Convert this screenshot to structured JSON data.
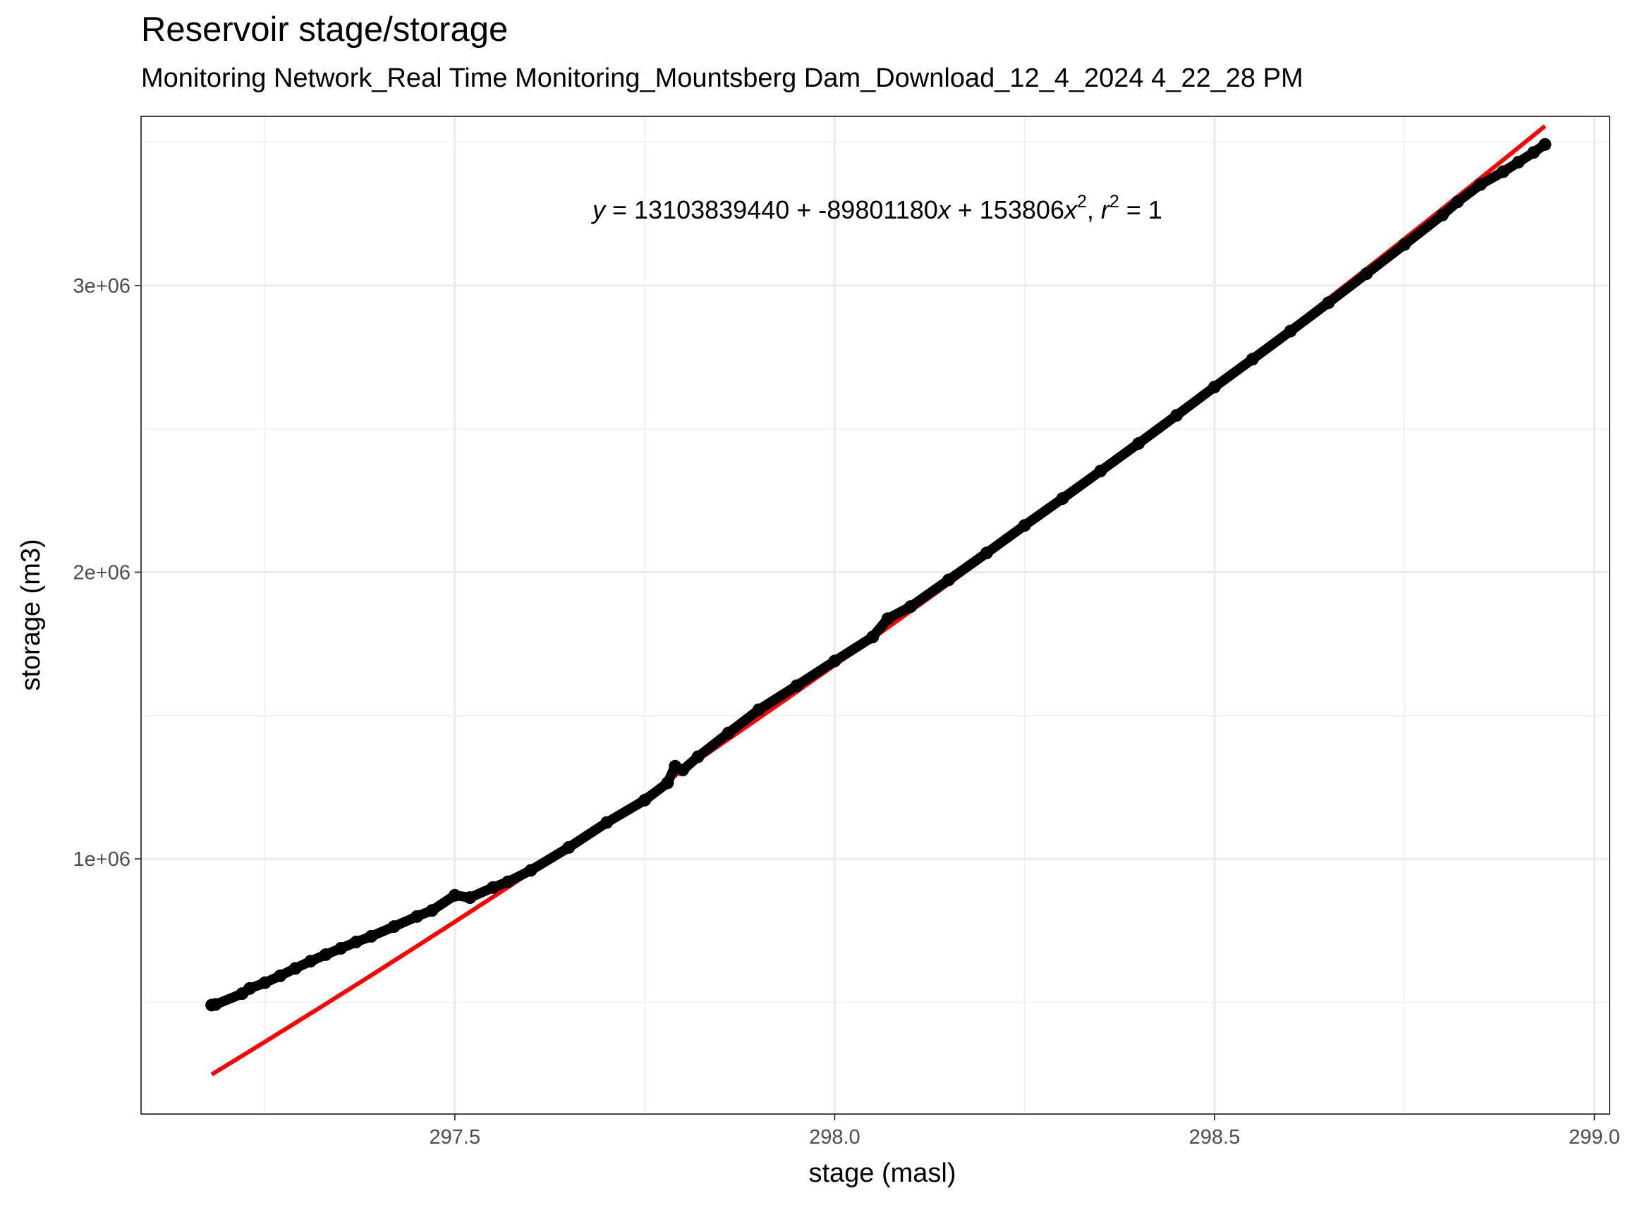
{
  "chart_data": {
    "type": "scatter",
    "title": "Reservoir stage/storage",
    "subtitle": "Monitoring Network_Real Time Monitoring_Mountsberg  Dam_Download_12_4_2024 4_22_28 PM",
    "xlabel": "stage (masl)",
    "ylabel": "storage (m3)",
    "xlim": [
      297.087,
      299.02
    ],
    "ylim": [
      110000,
      3590000
    ],
    "x_ticks": [
      297.5,
      298.0,
      298.5,
      299.0
    ],
    "x_tick_labels": [
      "297.5",
      "298.0",
      "298.5",
      "299.0"
    ],
    "y_ticks": [
      1000000,
      2000000,
      3000000
    ],
    "y_tick_labels": [
      "1e+06",
      "2e+06",
      "3e+06"
    ],
    "grid": true,
    "legend": "none",
    "annotation": {
      "equation_prefix": "y",
      "equation_body": " = 13103839440 + -89801180",
      "x_var": "x",
      "term_sep": " + 153806",
      "exponent": "2",
      "r_label_sep": ",  ",
      "r_var": "r",
      "r_value": " = 1"
    },
    "series": [
      {
        "kind": "points",
        "color": "#000000",
        "x": [
          297.18,
          297.185,
          297.22,
          297.23,
          297.25,
          297.27,
          297.29,
          297.31,
          297.33,
          297.35,
          297.37,
          297.39,
          297.42,
          297.45,
          297.47,
          297.5,
          297.52,
          297.55,
          297.57,
          297.6,
          297.65,
          297.7,
          297.75,
          297.78,
          297.79,
          297.8,
          297.82,
          297.86,
          297.9,
          297.95,
          298.0,
          298.05,
          298.07,
          298.1,
          298.15,
          298.2,
          298.25,
          298.3,
          298.35,
          298.4,
          298.45,
          298.5,
          298.55,
          298.6,
          298.65,
          298.7,
          298.75,
          298.8,
          298.82,
          298.85,
          298.88,
          298.9,
          298.92,
          298.935
        ],
        "y": [
          490000,
          492000,
          530000,
          548000,
          568000,
          592000,
          618000,
          643000,
          666000,
          688000,
          710000,
          730000,
          764000,
          799000,
          820000,
          873000,
          865000,
          900000,
          920000,
          960000,
          1040000,
          1127000,
          1205000,
          1265000,
          1323000,
          1310000,
          1356000,
          1439000,
          1520000,
          1604000,
          1690000,
          1774000,
          1838000,
          1880000,
          1973000,
          2067000,
          2163000,
          2257000,
          2353000,
          2449000,
          2547000,
          2646000,
          2743000,
          2841000,
          2940000,
          3041000,
          3143000,
          3246000,
          3292000,
          3352000,
          3397000,
          3430000,
          3464000,
          3492000
        ]
      },
      {
        "kind": "fit-line",
        "color": "#ff0000",
        "coefficients": [
          13103839440,
          -89801180,
          153806
        ]
      }
    ]
  }
}
